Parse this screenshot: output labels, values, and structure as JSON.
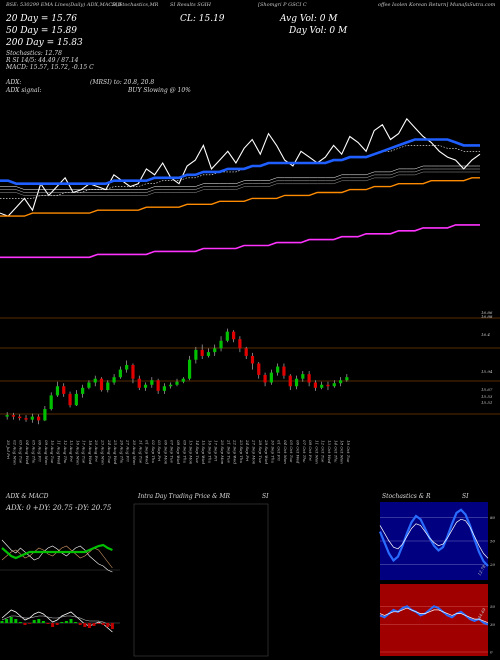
{
  "header": {
    "line1": "BSE: 530299  EMA Lines(Daily) ADX,MACD,B",
    "line1b": "SI,Stochastics,MR",
    "line1c": "SI Results  SGIH",
    "line1d": "[Shomgri P GSCI C",
    "line1e": "offee  Isolen Korean Return] MunafaSutra.com",
    "ema_lines": [
      {
        "label": "20  Day = 15.76",
        "color": "#ffffff"
      },
      {
        "label": "50  Day = 15.89",
        "color": "#ffffff"
      },
      {
        "label": "200  Day = 15.83",
        "color": "#ffffff"
      }
    ],
    "stoch": "Stochastics: 12.78",
    "rsi": "R  SI 14/5: 44.49 / 87.14",
    "macd": "MACD: 15.57,  15.72,  -0.15 C",
    "adx": "ADX:",
    "adx_signal": "ADX  signal:",
    "mrsi": "(MRSI) to:  20.8,  20.8",
    "signal": "BUY Slowing @ 10%",
    "cl": "CL: 15.19",
    "avg_vol": "Avg Vol: 0   M",
    "day_vol": "Day Vol: 0   M"
  },
  "panels": {
    "adx_title": "ADX  & MACD",
    "adx_values": "ADX: 0  +DY: 20.75  -DY: 20.75",
    "intraday_title": "Intra  Day Trading Price  & MR",
    "intraday_si": "SI",
    "stoch_title": "Stochastics & R",
    "stoch_si": "SI"
  },
  "colors": {
    "ema_blue": "#1f5fff",
    "ema_orange": "#ff8c00",
    "ema_magenta": "#ff33ff",
    "up": "#00c000",
    "down": "#e00000",
    "rsi_bg": "#a00000",
    "stoch_bg": "#000080"
  },
  "chart_data": [
    {
      "type": "line",
      "name": "price-ema",
      "x": [
        0,
        1,
        2,
        3,
        4,
        5,
        6,
        7,
        8,
        9,
        10,
        11,
        12,
        13,
        14,
        15,
        16,
        17,
        18,
        19,
        20,
        21,
        22,
        23,
        24,
        25,
        26,
        27,
        28,
        29,
        30,
        31,
        32,
        33,
        34,
        35,
        36,
        37,
        38,
        39,
        40,
        41,
        42,
        43,
        44,
        45,
        46,
        47,
        48,
        49,
        50,
        51,
        52,
        53,
        54,
        55,
        56,
        57,
        58,
        59
      ],
      "series": [
        {
          "role": "price",
          "values": [
            14.1,
            14.0,
            14.3,
            14.6,
            14.2,
            15.1,
            14.7,
            15.0,
            15.3,
            14.8,
            14.9,
            15.1,
            15.0,
            14.9,
            15.4,
            15.2,
            15.0,
            15.1,
            15.6,
            15.4,
            15.8,
            15.3,
            15.1,
            15.7,
            15.9,
            16.4,
            15.6,
            15.9,
            16.2,
            15.8,
            16.3,
            16.6,
            16.1,
            16.8,
            16.4,
            15.9,
            15.7,
            16.2,
            16.0,
            15.8,
            16.0,
            16.4,
            16.1,
            16.7,
            16.5,
            16.2,
            16.9,
            17.1,
            16.6,
            16.8,
            17.3,
            17.0,
            16.7,
            16.5,
            16.2,
            16.0,
            15.9,
            15.6,
            15.9,
            16.1
          ]
        },
        {
          "role": "ema-short",
          "values": [
            14.6,
            14.6,
            14.6,
            14.6,
            14.6,
            14.7,
            14.7,
            14.7,
            14.8,
            14.8,
            14.8,
            14.9,
            14.9,
            14.9,
            15.0,
            15.0,
            15.0,
            15.0,
            15.1,
            15.1,
            15.2,
            15.2,
            15.2,
            15.3,
            15.3,
            15.4,
            15.4,
            15.5,
            15.5,
            15.5,
            15.6,
            15.7,
            15.7,
            15.8,
            15.8,
            15.8,
            15.8,
            15.8,
            15.8,
            15.8,
            15.8,
            15.9,
            15.9,
            16.0,
            16.0,
            16.0,
            16.1,
            16.2,
            16.2,
            16.3,
            16.4,
            16.4,
            16.4,
            16.4,
            16.4,
            16.3,
            16.3,
            16.2,
            16.2,
            16.2
          ]
        },
        {
          "role": "ema-mid",
          "values": [
            15.0,
            15.0,
            15.0,
            14.9,
            14.9,
            14.9,
            14.9,
            14.9,
            14.9,
            14.9,
            14.9,
            14.9,
            14.9,
            14.9,
            14.9,
            14.9,
            14.9,
            14.9,
            14.9,
            15.0,
            15.0,
            15.0,
            15.0,
            15.0,
            15.0,
            15.1,
            15.1,
            15.1,
            15.1,
            15.1,
            15.2,
            15.2,
            15.2,
            15.2,
            15.3,
            15.3,
            15.3,
            15.3,
            15.3,
            15.3,
            15.3,
            15.3,
            15.4,
            15.4,
            15.4,
            15.4,
            15.5,
            15.5,
            15.5,
            15.6,
            15.6,
            15.6,
            15.7,
            15.7,
            15.7,
            15.7,
            15.7,
            15.7,
            15.7,
            15.7
          ]
        },
        {
          "role": "ema-blue",
          "values": [
            15.2,
            15.2,
            15.1,
            15.1,
            15.1,
            15.1,
            15.1,
            15.1,
            15.1,
            15.1,
            15.1,
            15.1,
            15.1,
            15.1,
            15.2,
            15.2,
            15.2,
            15.2,
            15.2,
            15.3,
            15.3,
            15.3,
            15.3,
            15.4,
            15.4,
            15.5,
            15.5,
            15.5,
            15.6,
            15.6,
            15.6,
            15.7,
            15.7,
            15.8,
            15.8,
            15.8,
            15.8,
            15.8,
            15.8,
            15.8,
            15.8,
            15.9,
            15.9,
            16.0,
            16.0,
            16.0,
            16.1,
            16.2,
            16.3,
            16.4,
            16.5,
            16.6,
            16.6,
            16.6,
            16.6,
            16.6,
            16.5,
            16.4,
            16.4,
            16.4
          ]
        },
        {
          "role": "ema-orange",
          "values": [
            14.0,
            14.0,
            14.0,
            14.0,
            14.1,
            14.1,
            14.1,
            14.1,
            14.1,
            14.1,
            14.1,
            14.1,
            14.2,
            14.2,
            14.2,
            14.2,
            14.2,
            14.2,
            14.3,
            14.3,
            14.3,
            14.3,
            14.3,
            14.4,
            14.4,
            14.4,
            14.4,
            14.5,
            14.5,
            14.5,
            14.5,
            14.6,
            14.6,
            14.6,
            14.6,
            14.7,
            14.7,
            14.7,
            14.7,
            14.8,
            14.8,
            14.8,
            14.8,
            14.9,
            14.9,
            14.9,
            15.0,
            15.0,
            15.0,
            15.1,
            15.1,
            15.1,
            15.1,
            15.2,
            15.2,
            15.2,
            15.2,
            15.2,
            15.3,
            15.3
          ]
        },
        {
          "role": "ema-magenta",
          "values": [
            12.6,
            12.6,
            12.6,
            12.6,
            12.6,
            12.6,
            12.6,
            12.6,
            12.6,
            12.6,
            12.6,
            12.6,
            12.7,
            12.7,
            12.7,
            12.7,
            12.7,
            12.7,
            12.7,
            12.8,
            12.8,
            12.8,
            12.8,
            12.8,
            12.8,
            12.9,
            12.9,
            12.9,
            12.9,
            12.9,
            13.0,
            13.0,
            13.0,
            13.0,
            13.1,
            13.1,
            13.1,
            13.1,
            13.2,
            13.2,
            13.2,
            13.2,
            13.3,
            13.3,
            13.3,
            13.4,
            13.4,
            13.4,
            13.4,
            13.5,
            13.5,
            13.5,
            13.6,
            13.6,
            13.6,
            13.6,
            13.7,
            13.7,
            13.7,
            13.7
          ]
        }
      ]
    },
    {
      "type": "bar",
      "name": "candles",
      "price_labels": [
        "16.86",
        "16.88",
        "16.4",
        "15.94",
        "15.67",
        "15.53",
        "15.51"
      ],
      "categories": [
        "30 Jul Fri",
        "02 Aug Mon",
        "03 Aug Tue",
        "04 Aug Wed",
        "05 Aug Thu",
        "06 Aug Fri",
        "09 Aug Mon",
        "10 Aug Tue",
        "11 Aug Wed",
        "12 Aug Thu",
        "13 Aug Fri",
        "16 Aug Mon",
        "17 Aug Tue",
        "18 Aug Wed",
        "20 Aug Fri",
        "23 Aug Mon",
        "24 Aug Tue",
        "25 Aug Wed",
        "26 Aug Thu",
        "27 Aug Fri",
        "30 Aug Mon",
        "31 Aug Tue",
        "01 Sep Wed",
        "02 Sep Thu",
        "03 Sep Fri",
        "06 Sep Mon",
        "07 Sep Tue",
        "08 Sep Wed",
        "09 Sep Thu",
        "13 Sep Mon",
        "14 Sep Tue",
        "15 Sep Wed",
        "16 Sep Thu",
        "17 Sep Fri",
        "20 Sep Mon",
        "21 Sep Tue",
        "22 Sep Wed",
        "23 Sep Thu",
        "24 Sep Fri",
        "27 Sep Mon",
        "28 Sep Tue",
        "29 Sep Wed",
        "30 Sep Thu",
        "01 Oct Fri",
        "04 Oct Mon",
        "05 Oct Tue",
        "06 Oct Wed",
        "07 Oct Thu",
        "08 Oct Fri",
        "11 Oct Mon",
        "12 Oct Tue",
        "13 Oct Wed",
        "14 Oct Thu",
        "18 Oct Mon",
        "19 Oct Tue"
      ],
      "candles": [
        {
          "o": 15.6,
          "c": 15.62,
          "h": 15.66,
          "l": 15.56
        },
        {
          "o": 15.62,
          "c": 15.6,
          "h": 15.65,
          "l": 15.56
        },
        {
          "o": 15.6,
          "c": 15.58,
          "h": 15.63,
          "l": 15.55
        },
        {
          "o": 15.58,
          "c": 15.56,
          "h": 15.62,
          "l": 15.53
        },
        {
          "o": 15.56,
          "c": 15.6,
          "h": 15.64,
          "l": 15.52
        },
        {
          "o": 15.6,
          "c": 15.55,
          "h": 15.63,
          "l": 15.5
        },
        {
          "o": 15.55,
          "c": 15.7,
          "h": 15.74,
          "l": 15.54
        },
        {
          "o": 15.7,
          "c": 15.88,
          "h": 15.92,
          "l": 15.68
        },
        {
          "o": 15.88,
          "c": 16.0,
          "h": 16.06,
          "l": 15.86
        },
        {
          "o": 16.0,
          "c": 15.9,
          "h": 16.04,
          "l": 15.86
        },
        {
          "o": 15.9,
          "c": 15.75,
          "h": 15.93,
          "l": 15.72
        },
        {
          "o": 15.75,
          "c": 15.9,
          "h": 15.95,
          "l": 15.74
        },
        {
          "o": 15.9,
          "c": 15.98,
          "h": 16.02,
          "l": 15.85
        },
        {
          "o": 15.98,
          "c": 16.05,
          "h": 16.08,
          "l": 15.96
        },
        {
          "o": 16.05,
          "c": 16.1,
          "h": 16.14,
          "l": 16.0
        },
        {
          "o": 16.1,
          "c": 15.95,
          "h": 16.12,
          "l": 15.93
        },
        {
          "o": 15.95,
          "c": 16.05,
          "h": 16.08,
          "l": 15.92
        },
        {
          "o": 16.05,
          "c": 16.12,
          "h": 16.16,
          "l": 16.02
        },
        {
          "o": 16.12,
          "c": 16.22,
          "h": 16.26,
          "l": 16.1
        },
        {
          "o": 16.22,
          "c": 16.28,
          "h": 16.34,
          "l": 16.18
        },
        {
          "o": 16.28,
          "c": 16.1,
          "h": 16.3,
          "l": 16.04
        },
        {
          "o": 16.1,
          "c": 15.98,
          "h": 16.14,
          "l": 15.95
        },
        {
          "o": 15.98,
          "c": 16.02,
          "h": 16.05,
          "l": 15.94
        },
        {
          "o": 16.02,
          "c": 16.08,
          "h": 16.12,
          "l": 15.98
        },
        {
          "o": 16.08,
          "c": 15.94,
          "h": 16.1,
          "l": 15.9
        },
        {
          "o": 15.94,
          "c": 16.0,
          "h": 16.04,
          "l": 15.9
        },
        {
          "o": 16.0,
          "c": 16.02,
          "h": 16.05,
          "l": 15.97
        },
        {
          "o": 16.02,
          "c": 16.06,
          "h": 16.1,
          "l": 16.0
        },
        {
          "o": 16.06,
          "c": 16.1,
          "h": 16.12,
          "l": 16.04
        },
        {
          "o": 16.1,
          "c": 16.35,
          "h": 16.4,
          "l": 16.08
        },
        {
          "o": 16.35,
          "c": 16.48,
          "h": 16.52,
          "l": 16.3
        },
        {
          "o": 16.48,
          "c": 16.4,
          "h": 16.55,
          "l": 16.36
        },
        {
          "o": 16.4,
          "c": 16.45,
          "h": 16.5,
          "l": 16.38
        },
        {
          "o": 16.45,
          "c": 16.5,
          "h": 16.55,
          "l": 16.4
        },
        {
          "o": 16.5,
          "c": 16.6,
          "h": 16.66,
          "l": 16.46
        },
        {
          "o": 16.6,
          "c": 16.72,
          "h": 16.76,
          "l": 16.58
        },
        {
          "o": 16.72,
          "c": 16.62,
          "h": 16.74,
          "l": 16.58
        },
        {
          "o": 16.62,
          "c": 16.5,
          "h": 16.66,
          "l": 16.45
        },
        {
          "o": 16.5,
          "c": 16.4,
          "h": 16.52,
          "l": 16.36
        },
        {
          "o": 16.4,
          "c": 16.3,
          "h": 16.44,
          "l": 16.22
        },
        {
          "o": 16.3,
          "c": 16.15,
          "h": 16.32,
          "l": 16.1
        },
        {
          "o": 16.15,
          "c": 16.05,
          "h": 16.18,
          "l": 16.0
        },
        {
          "o": 16.05,
          "c": 16.18,
          "h": 16.22,
          "l": 16.02
        },
        {
          "o": 16.18,
          "c": 16.26,
          "h": 16.3,
          "l": 16.14
        },
        {
          "o": 16.26,
          "c": 16.14,
          "h": 16.3,
          "l": 16.1
        },
        {
          "o": 16.14,
          "c": 16.0,
          "h": 16.16,
          "l": 15.95
        },
        {
          "o": 16.0,
          "c": 16.1,
          "h": 16.14,
          "l": 15.96
        },
        {
          "o": 16.1,
          "c": 16.16,
          "h": 16.2,
          "l": 16.06
        },
        {
          "o": 16.16,
          "c": 16.05,
          "h": 16.2,
          "l": 16.0
        },
        {
          "o": 16.05,
          "c": 15.98,
          "h": 16.08,
          "l": 15.94
        },
        {
          "o": 15.98,
          "c": 16.02,
          "h": 16.06,
          "l": 15.96
        },
        {
          "o": 16.02,
          "c": 16.0,
          "h": 16.06,
          "l": 15.95
        },
        {
          "o": 16.0,
          "c": 16.04,
          "h": 16.08,
          "l": 15.98
        },
        {
          "o": 16.04,
          "c": 16.08,
          "h": 16.12,
          "l": 16.0
        },
        {
          "o": 16.08,
          "c": 16.12,
          "h": 16.16,
          "l": 16.06
        }
      ]
    },
    {
      "type": "line",
      "name": "stochastics",
      "y_ticks": [
        "80",
        "50",
        "20"
      ],
      "series": [
        {
          "role": "blue",
          "values": [
            62,
            48,
            34,
            25,
            30,
            44,
            60,
            74,
            82,
            78,
            66,
            54,
            44,
            38,
            42,
            56,
            72,
            86,
            90,
            84,
            70,
            52,
            36,
            24,
            18
          ]
        },
        {
          "role": "white",
          "values": [
            70,
            60,
            50,
            42,
            40,
            46,
            56,
            66,
            72,
            70,
            62,
            54,
            48,
            44,
            46,
            54,
            64,
            74,
            78,
            76,
            68,
            56,
            44,
            34,
            28
          ]
        }
      ],
      "label": "12.78"
    },
    {
      "type": "line",
      "name": "rsi",
      "y_ticks": [
        "50",
        "30",
        "0"
      ],
      "series": [
        {
          "role": "blue",
          "values": [
            40,
            38,
            42,
            46,
            44,
            48,
            50,
            46,
            44,
            40,
            42,
            46,
            50,
            48,
            44,
            40,
            38,
            42,
            44,
            40,
            36,
            34,
            36,
            32,
            30
          ]
        },
        {
          "role": "white",
          "values": [
            42,
            40,
            42,
            44,
            44,
            46,
            48,
            46,
            44,
            42,
            42,
            44,
            46,
            46,
            44,
            42,
            40,
            42,
            42,
            40,
            38,
            36,
            36,
            34,
            32
          ]
        }
      ],
      "label": "44.49"
    }
  ]
}
